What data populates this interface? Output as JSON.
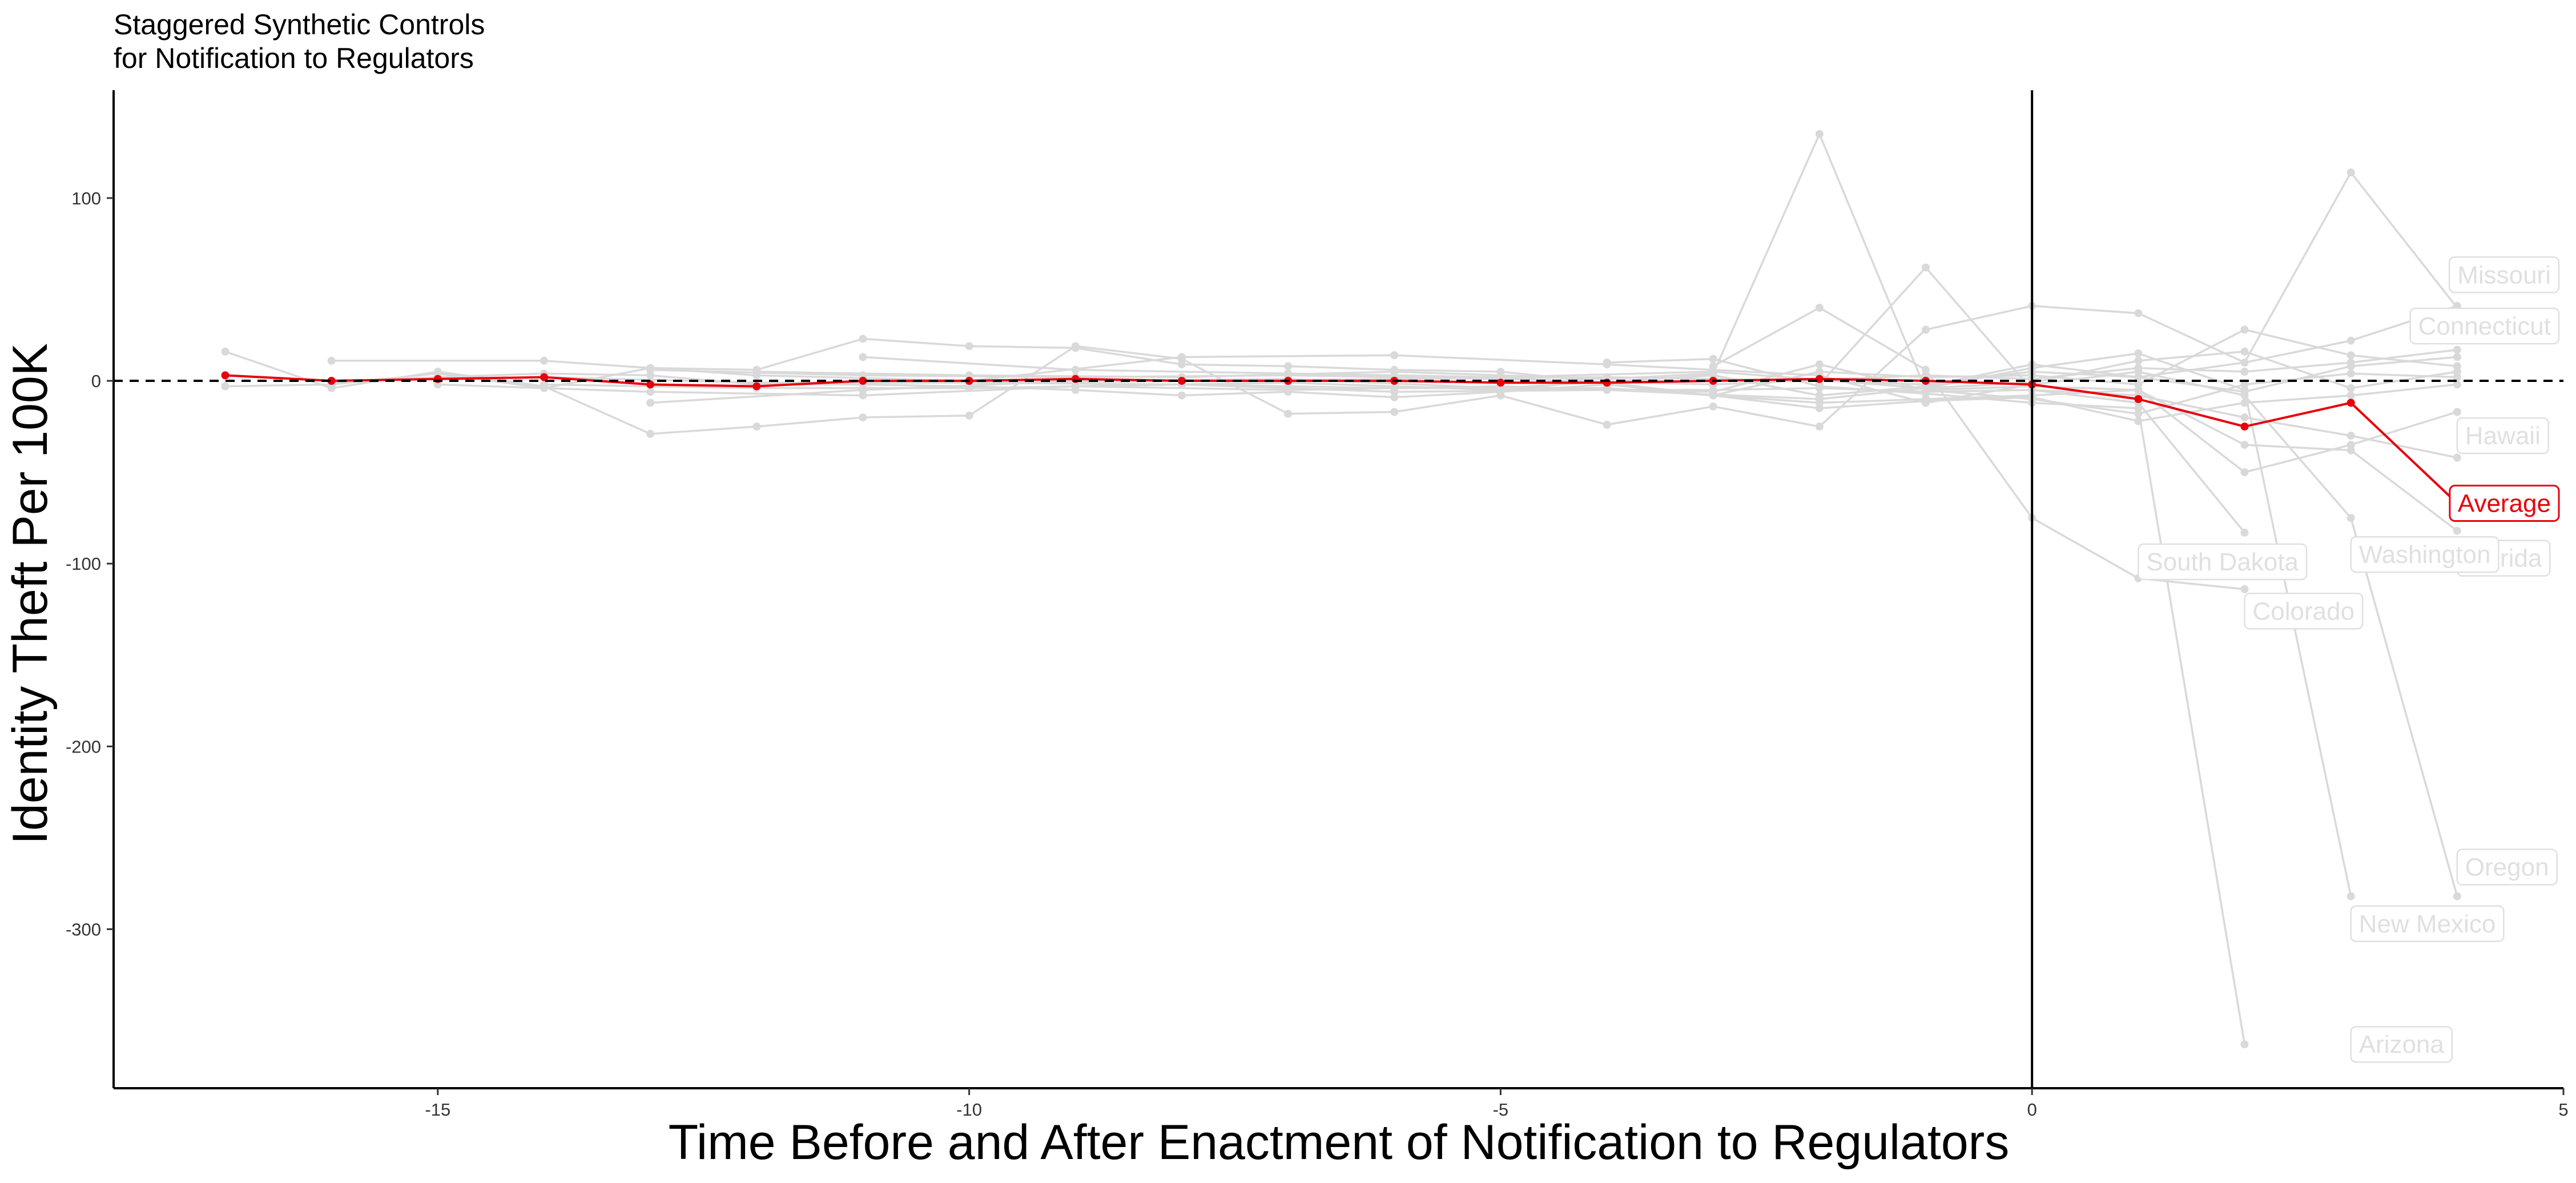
{
  "chart_data": {
    "type": "line",
    "title": [
      "Staggered Synthetic Controls",
      "for Notification to Regulators"
    ],
    "xlabel": "Time Before and After Enactment of Notification to Regulators",
    "ylabel": "Identity Theft Per 100K",
    "xlim": [
      -18.05,
      5
    ],
    "ylim": [
      -387,
      159
    ],
    "x_ticks": [
      -15,
      -10,
      -5,
      0,
      5
    ],
    "y_ticks": [
      100,
      0,
      -100,
      -200,
      -300
    ],
    "reference_lines": {
      "horizontal_dashed": 0,
      "vertical_solid": 0
    },
    "grid": false,
    "legend": "none",
    "colors": {
      "states": "#d9d9d9",
      "average": "#e8000b",
      "reference": "#000000"
    },
    "series": [
      {
        "name": "Average",
        "color": "#e8000b",
        "label_at": [
          4,
          -67
        ],
        "points": [
          [
            -17,
            3
          ],
          [
            -16,
            0
          ],
          [
            -15,
            1
          ],
          [
            -14,
            2
          ],
          [
            -13,
            -2
          ],
          [
            -12,
            -3
          ],
          [
            -11,
            0
          ],
          [
            -10,
            0
          ],
          [
            -9,
            1
          ],
          [
            -8,
            0
          ],
          [
            -7,
            0
          ],
          [
            -6,
            0
          ],
          [
            -5,
            -1
          ],
          [
            -4,
            -1
          ],
          [
            -3,
            0
          ],
          [
            -2,
            1
          ],
          [
            -1,
            0
          ],
          [
            0,
            -2
          ],
          [
            1,
            -10
          ],
          [
            2,
            -25
          ],
          [
            3,
            -12
          ],
          [
            4,
            -67
          ]
        ]
      },
      {
        "name": "Missouri",
        "label_at": [
          4,
          58
        ],
        "points": [
          [
            -14,
            2
          ],
          [
            -12,
            -1
          ],
          [
            -10,
            -1
          ],
          [
            -8,
            0
          ],
          [
            -6,
            1
          ],
          [
            -4,
            2
          ],
          [
            -2,
            0
          ],
          [
            -1,
            -2
          ],
          [
            0,
            5
          ],
          [
            1,
            2
          ],
          [
            2,
            10
          ],
          [
            3,
            22
          ],
          [
            4,
            41
          ]
        ]
      },
      {
        "name": "Connecticut",
        "label_at": [
          4,
          30
        ],
        "points": [
          [
            -13,
            6
          ],
          [
            -11,
            3
          ],
          [
            -9,
            2
          ],
          [
            -7,
            3
          ],
          [
            -5,
            1
          ],
          [
            -3,
            -2
          ],
          [
            -1,
            3
          ],
          [
            0,
            1
          ],
          [
            1,
            7
          ],
          [
            2,
            5
          ],
          [
            3,
            10
          ],
          [
            4,
            17
          ]
        ]
      },
      {
        "name": "Hawaii",
        "label_at": [
          4,
          -30
        ],
        "points": [
          [
            -9,
            -3
          ],
          [
            -7,
            -1
          ],
          [
            -5,
            -5
          ],
          [
            -3,
            -5
          ],
          [
            -2,
            -4
          ],
          [
            -1,
            -6
          ],
          [
            0,
            -5
          ],
          [
            1,
            -8
          ],
          [
            2,
            -20
          ],
          [
            3,
            -30
          ],
          [
            4,
            -42
          ]
        ]
      },
      {
        "name": "Florida",
        "label_at": [
          4,
          -97
        ],
        "points": [
          [
            -10,
            -1
          ],
          [
            -8,
            -2
          ],
          [
            -6,
            -4
          ],
          [
            -4,
            -4
          ],
          [
            -2,
            -12
          ],
          [
            -1,
            -10
          ],
          [
            0,
            -8
          ],
          [
            1,
            -5
          ],
          [
            2,
            -35
          ],
          [
            3,
            -38
          ],
          [
            4,
            -82
          ]
        ]
      },
      {
        "name": "Washington",
        "label_at": [
          3,
          -95
        ],
        "points": [
          [
            -12,
            5
          ],
          [
            -10,
            3
          ],
          [
            -8,
            2
          ],
          [
            -6,
            5
          ],
          [
            -4,
            1
          ],
          [
            -3,
            4
          ],
          [
            -2,
            135
          ],
          [
            -1,
            -5
          ],
          [
            0,
            -3
          ],
          [
            1,
            -5
          ],
          [
            2,
            -50
          ],
          [
            3,
            -35
          ],
          [
            4,
            -17
          ]
        ]
      },
      {
        "name": "South Dakota",
        "label_at": [
          1,
          -99
        ],
        "points": [
          [
            -3,
            8
          ],
          [
            -2,
            40
          ],
          [
            -1,
            6
          ],
          [
            0,
            -75
          ],
          [
            1,
            -108
          ],
          [
            2,
            -114
          ]
        ]
      },
      {
        "name": "Colorado",
        "label_at": [
          2,
          -126
        ],
        "points": [
          [
            -2,
            -2
          ],
          [
            -1,
            62
          ],
          [
            0,
            -5
          ],
          [
            1,
            -12
          ],
          [
            2,
            -83
          ]
        ]
      },
      {
        "name": "Oregon",
        "label_at": [
          4,
          -266
        ],
        "points": [
          [
            -16,
            11
          ],
          [
            -14,
            11
          ],
          [
            -12,
            3
          ],
          [
            -10,
            0
          ],
          [
            -8,
            13
          ],
          [
            -6,
            14
          ],
          [
            -4,
            9
          ],
          [
            -2,
            3
          ],
          [
            -1,
            -12
          ],
          [
            0,
            -2
          ],
          [
            1,
            5
          ],
          [
            2,
            -8
          ],
          [
            3,
            -75
          ],
          [
            4,
            -282
          ]
        ]
      },
      {
        "name": "New Mexico",
        "label_at": [
          3,
          -297
        ],
        "points": [
          [
            -11,
            13
          ],
          [
            -9,
            6
          ],
          [
            -7,
            4
          ],
          [
            -5,
            2
          ],
          [
            -3,
            5
          ],
          [
            -1,
            -4
          ],
          [
            0,
            7
          ],
          [
            1,
            15
          ],
          [
            2,
            -5
          ],
          [
            3,
            -282
          ]
        ]
      },
      {
        "name": "Arizona",
        "label_at": [
          3,
          -363
        ],
        "points": [
          [
            -4,
            10
          ],
          [
            -3,
            12
          ],
          [
            -2,
            -3
          ],
          [
            -1,
            -7
          ],
          [
            0,
            -12
          ],
          [
            1,
            -15
          ],
          [
            2,
            -363
          ]
        ]
      },
      {
        "name": "",
        "points": [
          [
            -17,
            16
          ],
          [
            -16,
            -4
          ],
          [
            -15,
            5
          ],
          [
            -14,
            -3
          ],
          [
            -13,
            -29
          ],
          [
            -12,
            -25
          ],
          [
            -11,
            -20
          ],
          [
            -10,
            -19
          ],
          [
            -9,
            19
          ],
          [
            -8,
            12
          ],
          [
            -7,
            -18
          ],
          [
            -6,
            -17
          ],
          [
            -5,
            -8
          ],
          [
            -4,
            -24
          ],
          [
            -3,
            -14
          ],
          [
            -2,
            -25
          ],
          [
            -1,
            28
          ],
          [
            0,
            41
          ],
          [
            1,
            37
          ],
          [
            2,
            10
          ],
          [
            3,
            114
          ],
          [
            4,
            40
          ]
        ]
      },
      {
        "name": "",
        "points": [
          [
            -17,
            -3
          ],
          [
            -16,
            -2
          ],
          [
            -15,
            4
          ],
          [
            -14,
            -4
          ],
          [
            -13,
            7
          ],
          [
            -12,
            6
          ],
          [
            -11,
            23
          ],
          [
            -10,
            19
          ],
          [
            -9,
            18
          ],
          [
            -8,
            9
          ],
          [
            -7,
            8
          ],
          [
            -6,
            6
          ],
          [
            -5,
            5
          ],
          [
            -4,
            -1
          ],
          [
            -3,
            -8
          ],
          [
            -2,
            5
          ],
          [
            -1,
            2
          ],
          [
            0,
            3
          ],
          [
            1,
            -2
          ],
          [
            2,
            28
          ],
          [
            3,
            14
          ],
          [
            4,
            8
          ]
        ]
      },
      {
        "name": "",
        "points": [
          [
            -16,
            -1
          ],
          [
            -15,
            2
          ],
          [
            -14,
            4
          ],
          [
            -13,
            3
          ],
          [
            -12,
            -2
          ],
          [
            -11,
            -2
          ],
          [
            -10,
            -3
          ],
          [
            -9,
            -5
          ],
          [
            -8,
            -8
          ],
          [
            -7,
            -6
          ],
          [
            -6,
            -9
          ],
          [
            -5,
            -6
          ],
          [
            -4,
            -2
          ],
          [
            -3,
            -8
          ],
          [
            -2,
            -15
          ],
          [
            -1,
            -11
          ],
          [
            0,
            -9
          ],
          [
            1,
            -22
          ],
          [
            2,
            -12
          ],
          [
            3,
            -8
          ],
          [
            4,
            -2
          ]
        ]
      },
      {
        "name": "",
        "points": [
          [
            -15,
            -2
          ],
          [
            -13,
            -6
          ],
          [
            -11,
            -8
          ],
          [
            -9,
            -3
          ],
          [
            -7,
            -5
          ],
          [
            -5,
            -3
          ],
          [
            -3,
            -6
          ],
          [
            -2,
            9
          ],
          [
            -1,
            -5
          ],
          [
            0,
            -10
          ],
          [
            1,
            -18
          ],
          [
            2,
            -2
          ],
          [
            3,
            4
          ],
          [
            4,
            2
          ]
        ]
      },
      {
        "name": "",
        "points": [
          [
            -14,
            -2
          ],
          [
            -12,
            -4
          ],
          [
            -10,
            -4
          ],
          [
            -8,
            -2
          ],
          [
            -6,
            -6
          ],
          [
            -4,
            -5
          ],
          [
            -2,
            -10
          ],
          [
            -1,
            -4
          ],
          [
            0,
            -1
          ],
          [
            1,
            11
          ],
          [
            2,
            16
          ],
          [
            3,
            -4
          ],
          [
            4,
            5
          ]
        ]
      },
      {
        "name": "",
        "points": [
          [
            -13,
            -12
          ],
          [
            -11,
            -5
          ],
          [
            -9,
            0
          ],
          [
            -7,
            1
          ],
          [
            -5,
            -4
          ],
          [
            -3,
            3
          ],
          [
            -2,
            -8
          ],
          [
            -1,
            -3
          ],
          [
            0,
            9
          ],
          [
            1,
            2
          ],
          [
            2,
            -6
          ],
          [
            3,
            8
          ],
          [
            4,
            13
          ]
        ]
      }
    ]
  }
}
